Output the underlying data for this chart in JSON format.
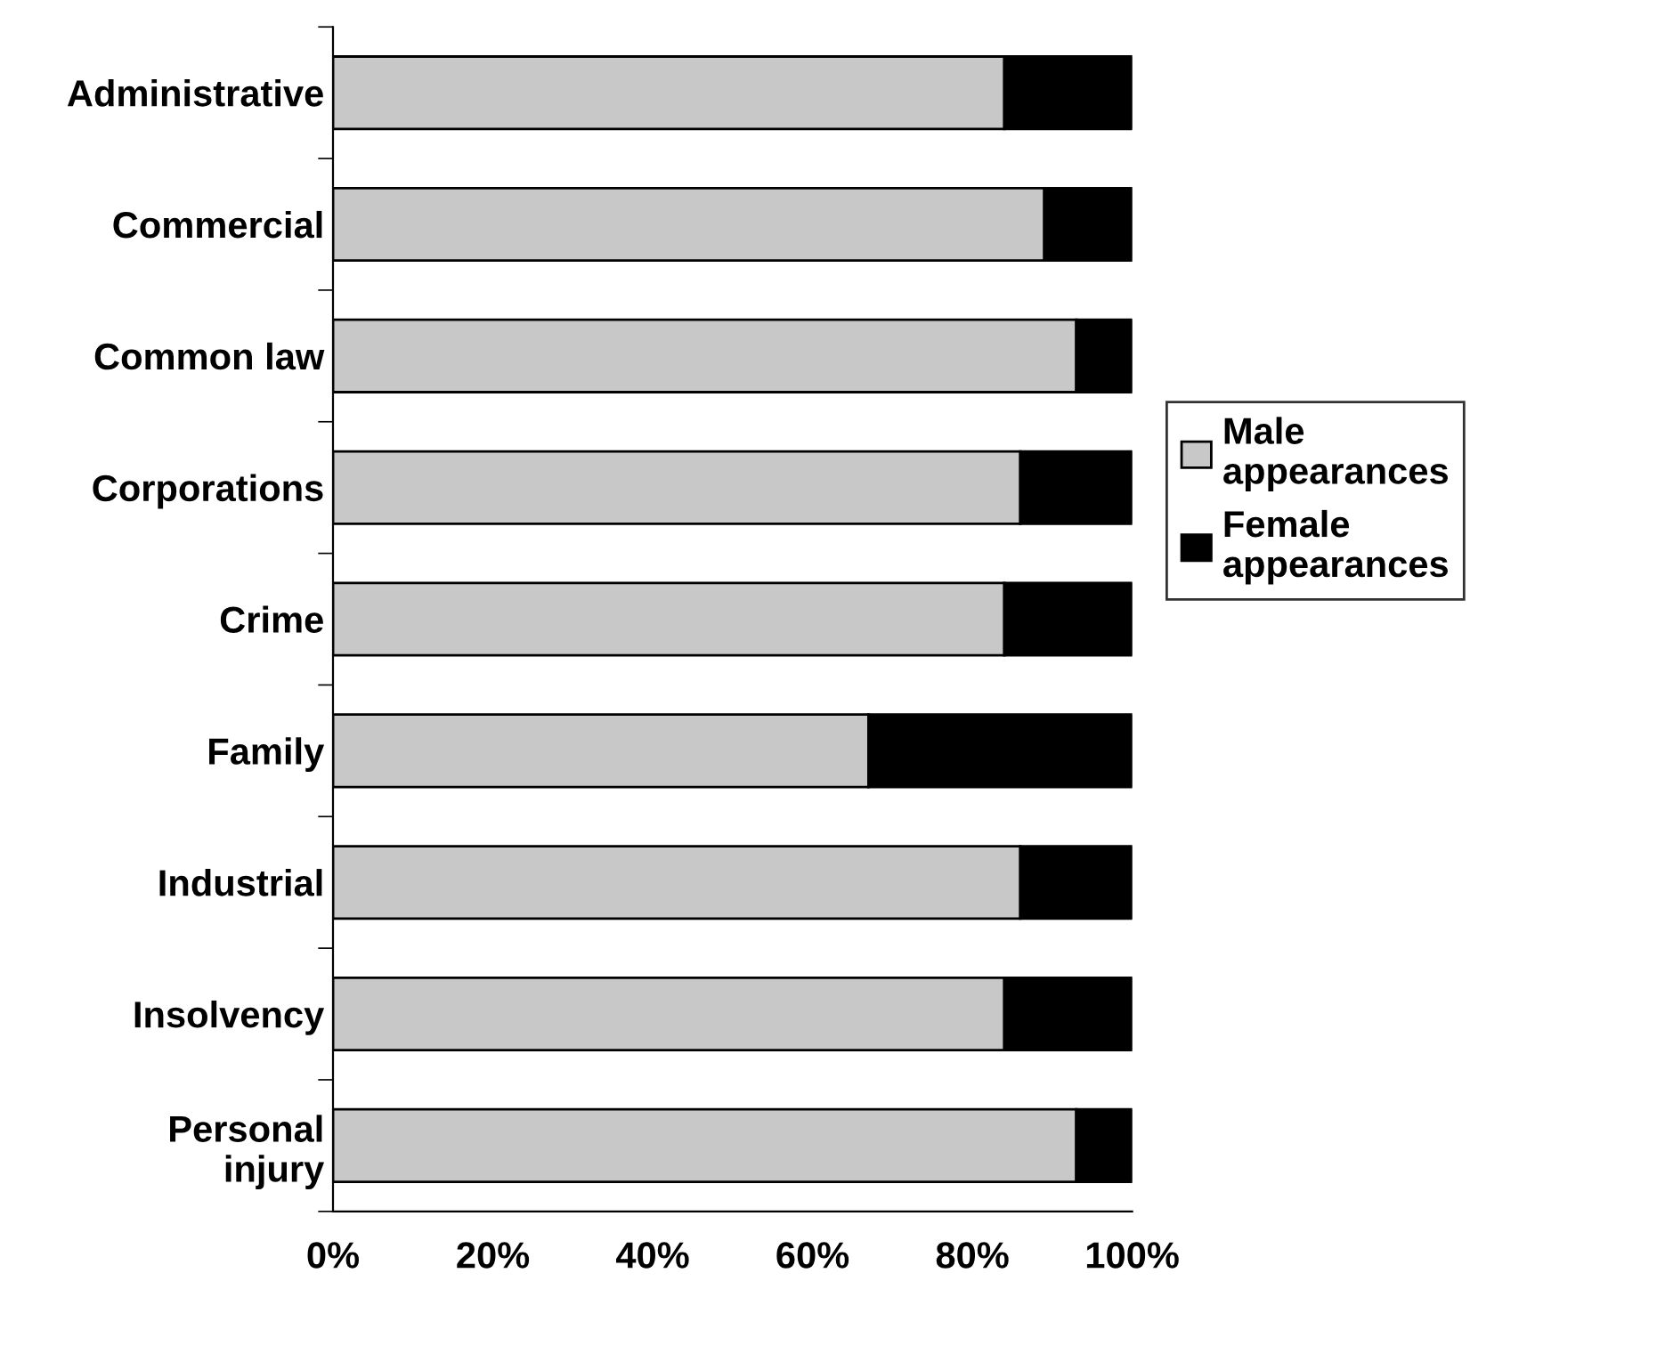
{
  "chart_data": {
    "type": "bar",
    "orientation": "horizontal",
    "stacked": true,
    "categories": [
      "Administrative",
      "Commercial",
      "Common law",
      "Corporations",
      "Crime",
      "Family",
      "Industrial",
      "Insolvency",
      "Personal\ninjury"
    ],
    "series": [
      {
        "name": "Male appearances",
        "color": "#c8c8c8",
        "values": [
          84,
          89,
          93,
          86,
          84,
          67,
          86,
          84,
          93
        ]
      },
      {
        "name": "Female appearances",
        "color": "#000000",
        "values": [
          16,
          11,
          7,
          14,
          16,
          33,
          14,
          16,
          7
        ]
      }
    ],
    "xlim": [
      0,
      100
    ],
    "xticks": [
      {
        "value": 0,
        "label": "0%"
      },
      {
        "value": 20,
        "label": "20%"
      },
      {
        "value": 40,
        "label": "40%"
      },
      {
        "value": 60,
        "label": "60%"
      },
      {
        "value": 80,
        "label": "80%"
      },
      {
        "value": 100,
        "label": "100%"
      }
    ],
    "grid": false,
    "legend": "right"
  }
}
